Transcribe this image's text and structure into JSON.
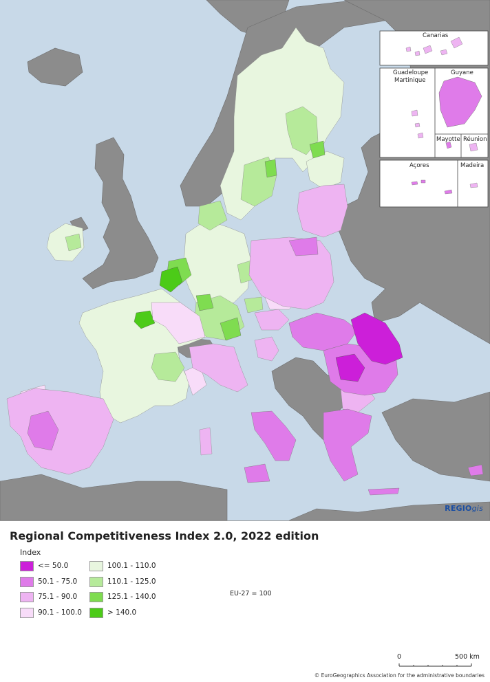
{
  "map": {
    "title": "Regional Competitiveness Index 2.0, 2022 edition",
    "legend_title": "Index",
    "legend": [
      {
        "label": "<= 50.0",
        "color": "#cc1fd9"
      },
      {
        "label": "50.1 - 75.0",
        "color": "#df7be9"
      },
      {
        "label": "75.1 - 90.0",
        "color": "#eeb4f2"
      },
      {
        "label": "90.1 - 100.0",
        "color": "#f8dcf9"
      },
      {
        "label": "100.1 - 110.0",
        "color": "#e8f6df"
      },
      {
        "label": "110.1 - 125.0",
        "color": "#b6ea9a"
      },
      {
        "label": "125.1 - 140.0",
        "color": "#7fdc50"
      },
      {
        "label": "> 140.0",
        "color": "#4ccb18"
      }
    ],
    "reference_note": "EU-27 = 100",
    "scale": {
      "start": "0",
      "end": "500 km"
    },
    "brand": {
      "main": "REGIO",
      "suffix": "gis"
    },
    "copyright": "© EuroGeographics Association for the administrative boundaries",
    "insets": {
      "canarias": "Canarias",
      "guadeloupe": "Guadeloupe",
      "martinique": "Martinique",
      "guyane": "Guyane",
      "mayotte": "Mayotte",
      "reunion": "Réunion",
      "acores": "Açores",
      "madeira": "Madeira"
    },
    "colors": {
      "sea": "#c8d9e8",
      "non_eu_land": "#8c8c8c",
      "border": "#555555"
    }
  }
}
